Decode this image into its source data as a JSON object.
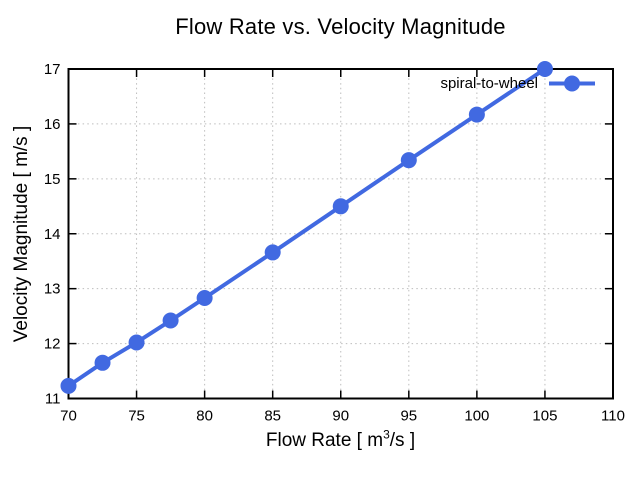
{
  "figure": {
    "xlabel_parts": {
      "pre": "Flow Rate [ m",
      "sup": "3",
      "post": "/s ]"
    }
  },
  "chart_data": {
    "type": "line",
    "title": "Flow Rate vs. Velocity Magnitude",
    "xlabel": "Flow Rate [ m^3/s ]",
    "ylabel": "Velocity Magnitude [ m/s ]",
    "xlim": [
      70,
      110
    ],
    "ylim": [
      11,
      17
    ],
    "xticks": [
      70,
      75,
      80,
      85,
      90,
      95,
      100,
      105,
      110
    ],
    "yticks": [
      11,
      12,
      13,
      14,
      15,
      16,
      17
    ],
    "grid": "dotted",
    "legend_position": "top-right-inside",
    "series": [
      {
        "name": "spiral-to-wheel",
        "color": "#4169e1",
        "marker": "filled-circle",
        "line_width": 4,
        "marker_radius": 8,
        "x": [
          70,
          72.5,
          75,
          77.5,
          80,
          85,
          90,
          95,
          100,
          105
        ],
        "y": [
          11.23,
          11.65,
          12.02,
          12.42,
          12.83,
          13.66,
          14.5,
          15.34,
          16.17,
          17.0
        ]
      }
    ],
    "colors": {
      "axis": "#000000",
      "grid": "#bdbdbd",
      "background": "#ffffff"
    }
  }
}
